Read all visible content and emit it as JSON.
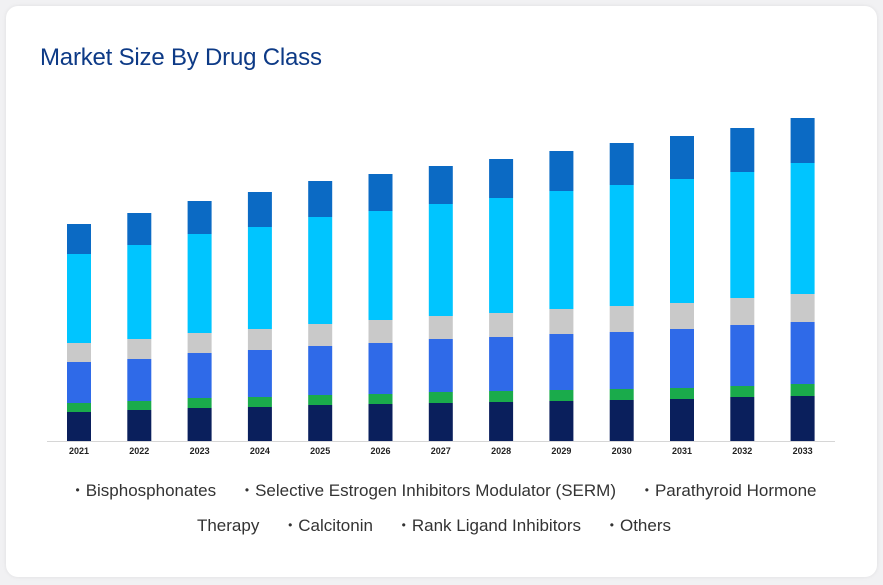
{
  "card": {
    "title": "Market Size By Drug Class"
  },
  "chart_data": {
    "type": "bar",
    "stacked": true,
    "title": "Market Size By Drug Class",
    "xlabel": "",
    "ylabel": "",
    "grid": false,
    "legend_position": "bottom",
    "categories": [
      "2021",
      "2022",
      "2023",
      "2024",
      "2025",
      "2026",
      "2027",
      "2028",
      "2029",
      "2030",
      "2031",
      "2032",
      "2033"
    ],
    "series": [
      {
        "name": "Bisphosphonates",
        "color": "#0a1f5c",
        "values": [
          29,
          31,
          33,
          34,
          36,
          37,
          38,
          39,
          40,
          41,
          42,
          44,
          45
        ]
      },
      {
        "name": "Selective Estrogen Inhibitors Modulator (SERM)",
        "color": "#1aab4b",
        "values": [
          9,
          9,
          10,
          10,
          10,
          10,
          11,
          11,
          11,
          11,
          11,
          11,
          12
        ]
      },
      {
        "name": "Parathyroid Hormone Therapy",
        "color": "#2f6ae8",
        "values": [
          41,
          42,
          45,
          47,
          49,
          51,
          53,
          54,
          56,
          57,
          59,
          61,
          62
        ]
      },
      {
        "name": "Calcitonin",
        "color": "#c9c9c9",
        "values": [
          19,
          20,
          20,
          21,
          22,
          23,
          23,
          24,
          25,
          26,
          26,
          27,
          28
        ]
      },
      {
        "name": "Rank Ligand Inhibitors",
        "color": "#00c5ff",
        "values": [
          89,
          94,
          99,
          102,
          107,
          109,
          112,
          115,
          118,
          121,
          124,
          126,
          131
        ]
      },
      {
        "name": "Others",
        "color": "#0b6ac4",
        "values": [
          30,
          32,
          33,
          35,
          36,
          37,
          38,
          39,
          40,
          42,
          43,
          44,
          45
        ]
      }
    ]
  },
  "legend": {
    "items": [
      {
        "label": "Bisphosphonates"
      },
      {
        "label": "Selective Estrogen Inhibitors Modulator (SERM)"
      },
      {
        "label": "Parathyroid Hormone Therapy"
      },
      {
        "label": "Calcitonin"
      },
      {
        "label": "Rank Ligand Inhibitors"
      },
      {
        "label": "Others"
      }
    ],
    "bullet": "•"
  }
}
